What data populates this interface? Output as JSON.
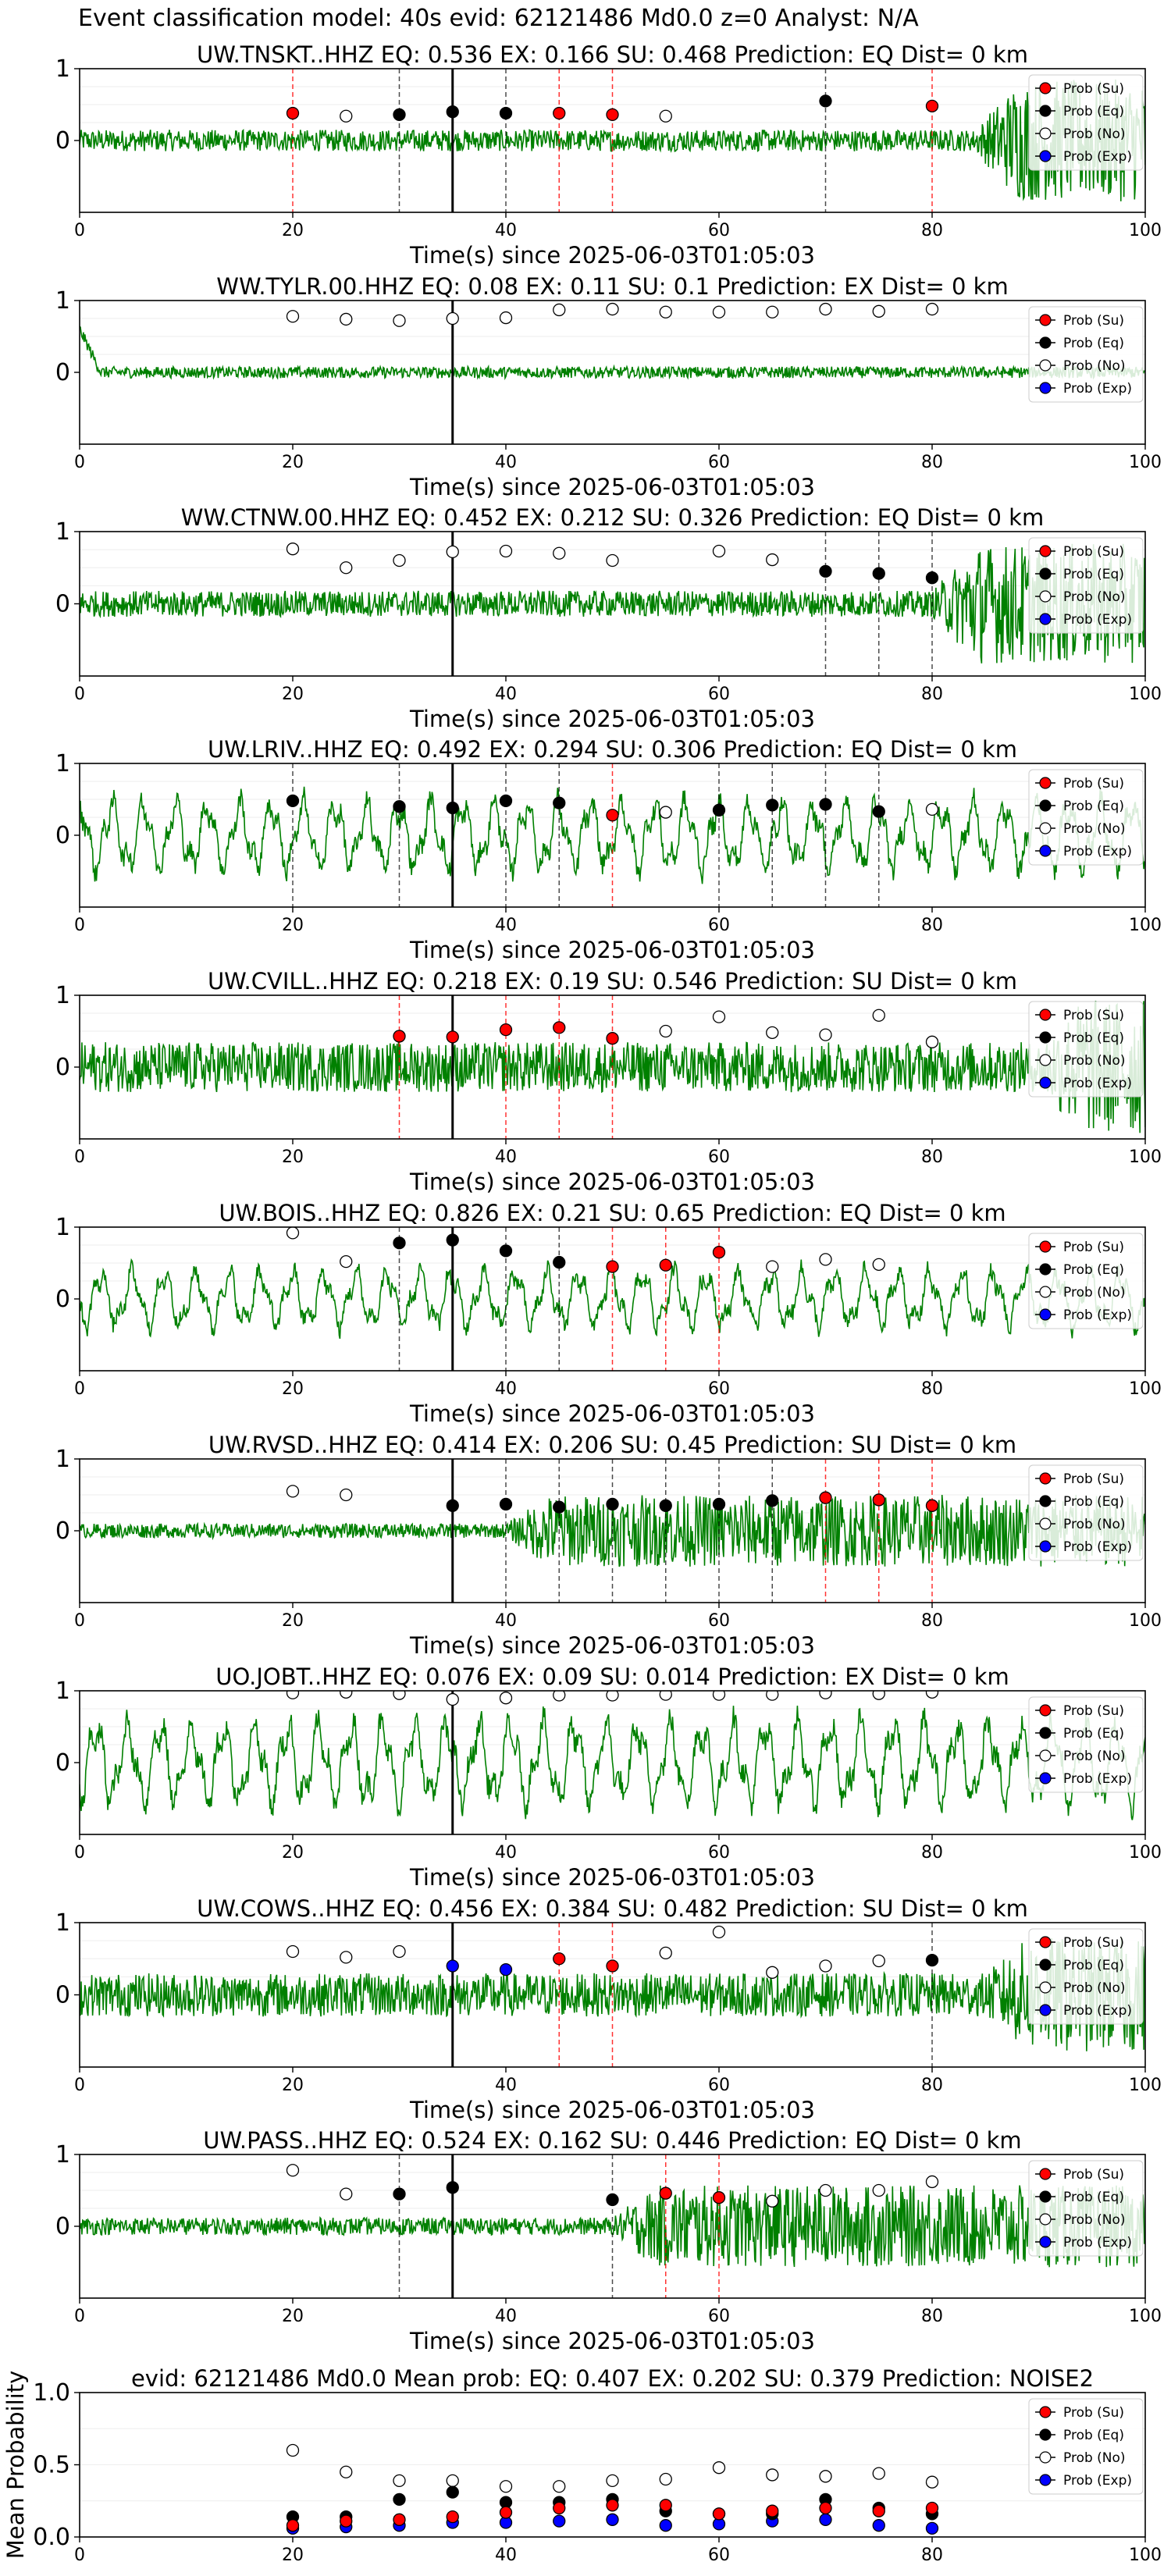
{
  "suptitle": "Event classification model: 40s evid: 62121486 Md0.0 z=0 Analyst: N/A",
  "legend": [
    "Prob (Su)",
    "Prob (Eq)",
    "Prob (No)",
    "Prob (Exp)"
  ],
  "colors": {
    "su": "#ff0000",
    "eq": "#000000",
    "no": "#ffffff",
    "exp": "#0000ff",
    "waveform": "#008000",
    "su_line": "#ff0000",
    "eq_line": "#000000"
  },
  "chart_data": [
    {
      "type": "line",
      "title": "UW.TNSKT..HHZ   EQ: 0.536  EX: 0.166  SU: 0.468   Prediction: EQ    Dist= 0 km",
      "xlabel": "Time(s) since 2025-06-03T01:05:03",
      "xlim": [
        0,
        100
      ],
      "ylim": [
        -1,
        1
      ],
      "xticks": [
        0,
        20,
        40,
        60,
        80,
        100
      ],
      "yticks": [
        1,
        0
      ],
      "origin": 35,
      "waveform": {
        "amp": 0.15,
        "burst_start": 84,
        "burst_amp": 0.7
      },
      "su": [
        [
          20,
          0.38
        ],
        [
          45,
          0.38
        ],
        [
          50,
          0.36
        ],
        [
          80,
          0.48
        ]
      ],
      "eq": [
        [
          30,
          0.36
        ],
        [
          35,
          0.4
        ],
        [
          40,
          0.38
        ],
        [
          70,
          0.55
        ]
      ],
      "no": [
        [
          25,
          0.34
        ],
        [
          55,
          0.34
        ]
      ],
      "exp": []
    },
    {
      "type": "line",
      "title": "WW.TYLR.00.HHZ   EQ: 0.08  EX: 0.11  SU: 0.1   Prediction: EX    Dist= 0 km",
      "xlabel": "Time(s) since 2025-06-03T01:05:03",
      "xlim": [
        0,
        100
      ],
      "ylim": [
        -1,
        1
      ],
      "xticks": [
        0,
        20,
        40,
        60,
        80,
        100
      ],
      "yticks": [
        1,
        0
      ],
      "origin": 35,
      "waveform": {
        "amp": 0.08,
        "burst_start": 0,
        "burst_amp": 0
      },
      "su": [],
      "eq": [],
      "no": [
        [
          20,
          0.78
        ],
        [
          25,
          0.74
        ],
        [
          30,
          0.72
        ],
        [
          35,
          0.75
        ],
        [
          40,
          0.76
        ],
        [
          45,
          0.87
        ],
        [
          50,
          0.88
        ],
        [
          55,
          0.84
        ],
        [
          60,
          0.84
        ],
        [
          65,
          0.84
        ],
        [
          70,
          0.88
        ],
        [
          75,
          0.85
        ],
        [
          80,
          0.88
        ]
      ],
      "exp": []
    },
    {
      "type": "line",
      "title": "WW.CTNW.00.HHZ   EQ: 0.452  EX: 0.212  SU: 0.326   Prediction: EQ    Dist= 0 km",
      "xlabel": "Time(s) since 2025-06-03T01:05:03",
      "xlim": [
        0,
        100
      ],
      "ylim": [
        -1,
        1
      ],
      "xticks": [
        0,
        20,
        40,
        60,
        80,
        100
      ],
      "yticks": [
        1,
        0
      ],
      "origin": 35,
      "waveform": {
        "amp": 0.18,
        "burst_start": 80,
        "burst_amp": 0.65
      },
      "su": [],
      "eq": [
        [
          70,
          0.45
        ],
        [
          75,
          0.42
        ],
        [
          80,
          0.36
        ]
      ],
      "no": [
        [
          20,
          0.76
        ],
        [
          25,
          0.5
        ],
        [
          30,
          0.6
        ],
        [
          35,
          0.72
        ],
        [
          40,
          0.73
        ],
        [
          45,
          0.7
        ],
        [
          50,
          0.6
        ],
        [
          60,
          0.73
        ],
        [
          65,
          0.61
        ]
      ],
      "exp": []
    },
    {
      "type": "line",
      "title": "UW.LRIV..HHZ   EQ: 0.492  EX: 0.294  SU: 0.306   Prediction: EQ    Dist= 0 km",
      "xlabel": "Time(s) since 2025-06-03T01:05:03",
      "xlim": [
        0,
        100
      ],
      "ylim": [
        -1,
        1
      ],
      "xticks": [
        0,
        20,
        40,
        60,
        80,
        100
      ],
      "yticks": [
        1,
        0
      ],
      "origin": 35,
      "waveform": {
        "amp": 0.55,
        "burst_start": 0,
        "burst_amp": 0
      },
      "su": [
        [
          50,
          0.28
        ]
      ],
      "eq": [
        [
          20,
          0.48
        ],
        [
          30,
          0.4
        ],
        [
          35,
          0.38
        ],
        [
          40,
          0.48
        ],
        [
          45,
          0.45
        ],
        [
          60,
          0.35
        ],
        [
          65,
          0.42
        ],
        [
          70,
          0.43
        ],
        [
          75,
          0.33
        ]
      ],
      "no": [
        [
          55,
          0.32
        ],
        [
          80,
          0.36
        ]
      ],
      "exp": []
    },
    {
      "type": "line",
      "title": "UW.CVILL..HHZ   EQ: 0.218  EX: 0.19  SU: 0.546   Prediction: SU    Dist= 0 km",
      "xlabel": "Time(s) since 2025-06-03T01:05:03",
      "xlim": [
        0,
        100
      ],
      "ylim": [
        -1,
        1
      ],
      "xticks": [
        0,
        20,
        40,
        60,
        80,
        100
      ],
      "yticks": [
        1,
        0
      ],
      "origin": 35,
      "waveform": {
        "amp": 0.35,
        "burst_start": 90,
        "burst_amp": 0.6
      },
      "su": [
        [
          30,
          0.43
        ],
        [
          35,
          0.42
        ],
        [
          40,
          0.52
        ],
        [
          45,
          0.55
        ],
        [
          50,
          0.4
        ]
      ],
      "eq": [],
      "no": [
        [
          55,
          0.5
        ],
        [
          60,
          0.7
        ],
        [
          65,
          0.48
        ],
        [
          70,
          0.45
        ],
        [
          75,
          0.72
        ],
        [
          80,
          0.35
        ]
      ],
      "exp": []
    },
    {
      "type": "line",
      "title": "UW.BOIS..HHZ   EQ: 0.826  EX: 0.21  SU: 0.65   Prediction: EQ    Dist= 0 km",
      "xlabel": "Time(s) since 2025-06-03T01:05:03",
      "xlim": [
        0,
        100
      ],
      "ylim": [
        -1,
        1
      ],
      "xticks": [
        0,
        20,
        40,
        60,
        80,
        100
      ],
      "yticks": [
        1,
        0
      ],
      "origin": 35,
      "waveform": {
        "amp": 0.45,
        "burst_start": 0,
        "burst_amp": 0
      },
      "su": [
        [
          50,
          0.45
        ],
        [
          55,
          0.47
        ],
        [
          60,
          0.65
        ]
      ],
      "eq": [
        [
          30,
          0.78
        ],
        [
          35,
          0.82
        ],
        [
          40,
          0.67
        ],
        [
          45,
          0.51
        ]
      ],
      "no": [
        [
          20,
          0.92
        ],
        [
          25,
          0.52
        ],
        [
          65,
          0.45
        ],
        [
          70,
          0.55
        ],
        [
          75,
          0.48
        ]
      ],
      "exp": []
    },
    {
      "type": "line",
      "title": "UW.RVSD..HHZ   EQ: 0.414  EX: 0.206  SU: 0.45   Prediction: SU    Dist= 0 km",
      "xlabel": "Time(s) since 2025-06-03T01:05:03",
      "xlim": [
        0,
        100
      ],
      "ylim": [
        -1,
        1
      ],
      "xticks": [
        0,
        20,
        40,
        60,
        80,
        100
      ],
      "yticks": [
        1,
        0
      ],
      "origin": 35,
      "waveform": {
        "amp": 0.1,
        "burst_start": 40,
        "burst_amp": 0.4
      },
      "su": [
        [
          70,
          0.46
        ],
        [
          75,
          0.43
        ],
        [
          80,
          0.35
        ]
      ],
      "eq": [
        [
          35,
          0.35
        ],
        [
          40,
          0.37
        ],
        [
          45,
          0.33
        ],
        [
          50,
          0.37
        ],
        [
          55,
          0.35
        ],
        [
          60,
          0.37
        ],
        [
          65,
          0.42
        ]
      ],
      "no": [
        [
          20,
          0.55
        ],
        [
          25,
          0.5
        ]
      ],
      "exp": []
    },
    {
      "type": "line",
      "title": "UO.JOBT..HHZ   EQ: 0.076  EX: 0.09  SU: 0.014   Prediction: EX    Dist= 0 km",
      "xlabel": "Time(s) since 2025-06-03T01:05:03",
      "xlim": [
        0,
        100
      ],
      "ylim": [
        -1,
        1
      ],
      "xticks": [
        0,
        20,
        40,
        60,
        80,
        100
      ],
      "yticks": [
        1,
        0
      ],
      "origin": 35,
      "waveform": {
        "amp": 0.65,
        "burst_start": 0,
        "burst_amp": 0
      },
      "su": [],
      "eq": [],
      "no": [
        [
          20,
          0.97
        ],
        [
          25,
          0.98
        ],
        [
          30,
          0.96
        ],
        [
          35,
          0.88
        ],
        [
          40,
          0.9
        ],
        [
          45,
          0.94
        ],
        [
          50,
          0.94
        ],
        [
          55,
          0.95
        ],
        [
          60,
          0.95
        ],
        [
          65,
          0.95
        ],
        [
          70,
          0.97
        ],
        [
          75,
          0.96
        ],
        [
          80,
          0.98
        ]
      ],
      "exp": []
    },
    {
      "type": "line",
      "title": "UW.COWS..HHZ   EQ: 0.456  EX: 0.384  SU: 0.482   Prediction: SU    Dist= 0 km",
      "xlabel": "Time(s) since 2025-06-03T01:05:03",
      "xlim": [
        0,
        100
      ],
      "ylim": [
        -1,
        1
      ],
      "xticks": [
        0,
        20,
        40,
        60,
        80,
        100
      ],
      "yticks": [
        1,
        0
      ],
      "origin": 35,
      "waveform": {
        "amp": 0.3,
        "burst_start": 85,
        "burst_amp": 0.5
      },
      "su": [
        [
          45,
          0.5
        ],
        [
          50,
          0.4
        ]
      ],
      "eq": [
        [
          80,
          0.48
        ]
      ],
      "no": [
        [
          20,
          0.6
        ],
        [
          25,
          0.52
        ],
        [
          30,
          0.6
        ],
        [
          55,
          0.58
        ],
        [
          60,
          0.87
        ],
        [
          65,
          0.31
        ],
        [
          70,
          0.4
        ],
        [
          75,
          0.47
        ]
      ],
      "exp": [
        [
          35,
          0.4
        ],
        [
          40,
          0.35
        ]
      ]
    },
    {
      "type": "line",
      "title": "UW.PASS..HHZ   EQ: 0.524  EX: 0.162  SU: 0.446   Prediction: EQ    Dist= 0 km",
      "xlabel": "Time(s) since 2025-06-03T01:05:03",
      "xlim": [
        0,
        100
      ],
      "ylim": [
        -1,
        1
      ],
      "xticks": [
        0,
        20,
        40,
        60,
        80,
        100
      ],
      "yticks": [
        1,
        0
      ],
      "origin": 35,
      "waveform": {
        "amp": 0.12,
        "burst_start": 50,
        "burst_amp": 0.45
      },
      "su": [
        [
          55,
          0.46
        ],
        [
          60,
          0.4
        ]
      ],
      "eq": [
        [
          30,
          0.45
        ],
        [
          35,
          0.54
        ],
        [
          50,
          0.37
        ]
      ],
      "no": [
        [
          20,
          0.78
        ],
        [
          25,
          0.45
        ],
        [
          65,
          0.35
        ],
        [
          70,
          0.5
        ],
        [
          75,
          0.5
        ],
        [
          80,
          0.62
        ]
      ],
      "exp": []
    },
    {
      "type": "scatter",
      "title": "evid: 62121486  Md0.0   Mean prob:   EQ: 0.407  EX: 0.202  SU: 0.379   Prediction: NOISE2",
      "xlabel": "",
      "ylabel": "Mean Probability",
      "xlim": [
        0,
        100
      ],
      "ylim": [
        0,
        1
      ],
      "xticks": [
        0,
        20,
        40,
        60,
        80,
        100
      ],
      "yticks": [
        0,
        0.5,
        1
      ],
      "ytick_labels": [
        "0.0",
        "0.5",
        "1.0"
      ],
      "su": [
        [
          20,
          0.08
        ],
        [
          25,
          0.11
        ],
        [
          30,
          0.12
        ],
        [
          35,
          0.14
        ],
        [
          40,
          0.17
        ],
        [
          45,
          0.2
        ],
        [
          50,
          0.22
        ],
        [
          55,
          0.22
        ],
        [
          60,
          0.16
        ],
        [
          65,
          0.18
        ],
        [
          70,
          0.2
        ],
        [
          75,
          0.18
        ],
        [
          80,
          0.2
        ]
      ],
      "eq": [
        [
          20,
          0.14
        ],
        [
          25,
          0.14
        ],
        [
          30,
          0.26
        ],
        [
          35,
          0.31
        ],
        [
          40,
          0.24
        ],
        [
          45,
          0.24
        ],
        [
          50,
          0.26
        ],
        [
          55,
          0.18
        ],
        [
          60,
          0.16
        ],
        [
          65,
          0.16
        ],
        [
          70,
          0.26
        ],
        [
          75,
          0.2
        ],
        [
          80,
          0.16
        ]
      ],
      "no": [
        [
          20,
          0.6
        ],
        [
          25,
          0.45
        ],
        [
          30,
          0.39
        ],
        [
          35,
          0.39
        ],
        [
          40,
          0.35
        ],
        [
          45,
          0.35
        ],
        [
          50,
          0.39
        ],
        [
          55,
          0.4
        ],
        [
          60,
          0.48
        ],
        [
          65,
          0.43
        ],
        [
          70,
          0.42
        ],
        [
          75,
          0.44
        ],
        [
          80,
          0.38
        ]
      ],
      "exp": [
        [
          20,
          0.06
        ],
        [
          25,
          0.07
        ],
        [
          30,
          0.08
        ],
        [
          35,
          0.1
        ],
        [
          40,
          0.1
        ],
        [
          45,
          0.11
        ],
        [
          50,
          0.12
        ],
        [
          55,
          0.08
        ],
        [
          60,
          0.09
        ],
        [
          65,
          0.11
        ],
        [
          70,
          0.12
        ],
        [
          75,
          0.08
        ],
        [
          80,
          0.06
        ]
      ]
    }
  ]
}
